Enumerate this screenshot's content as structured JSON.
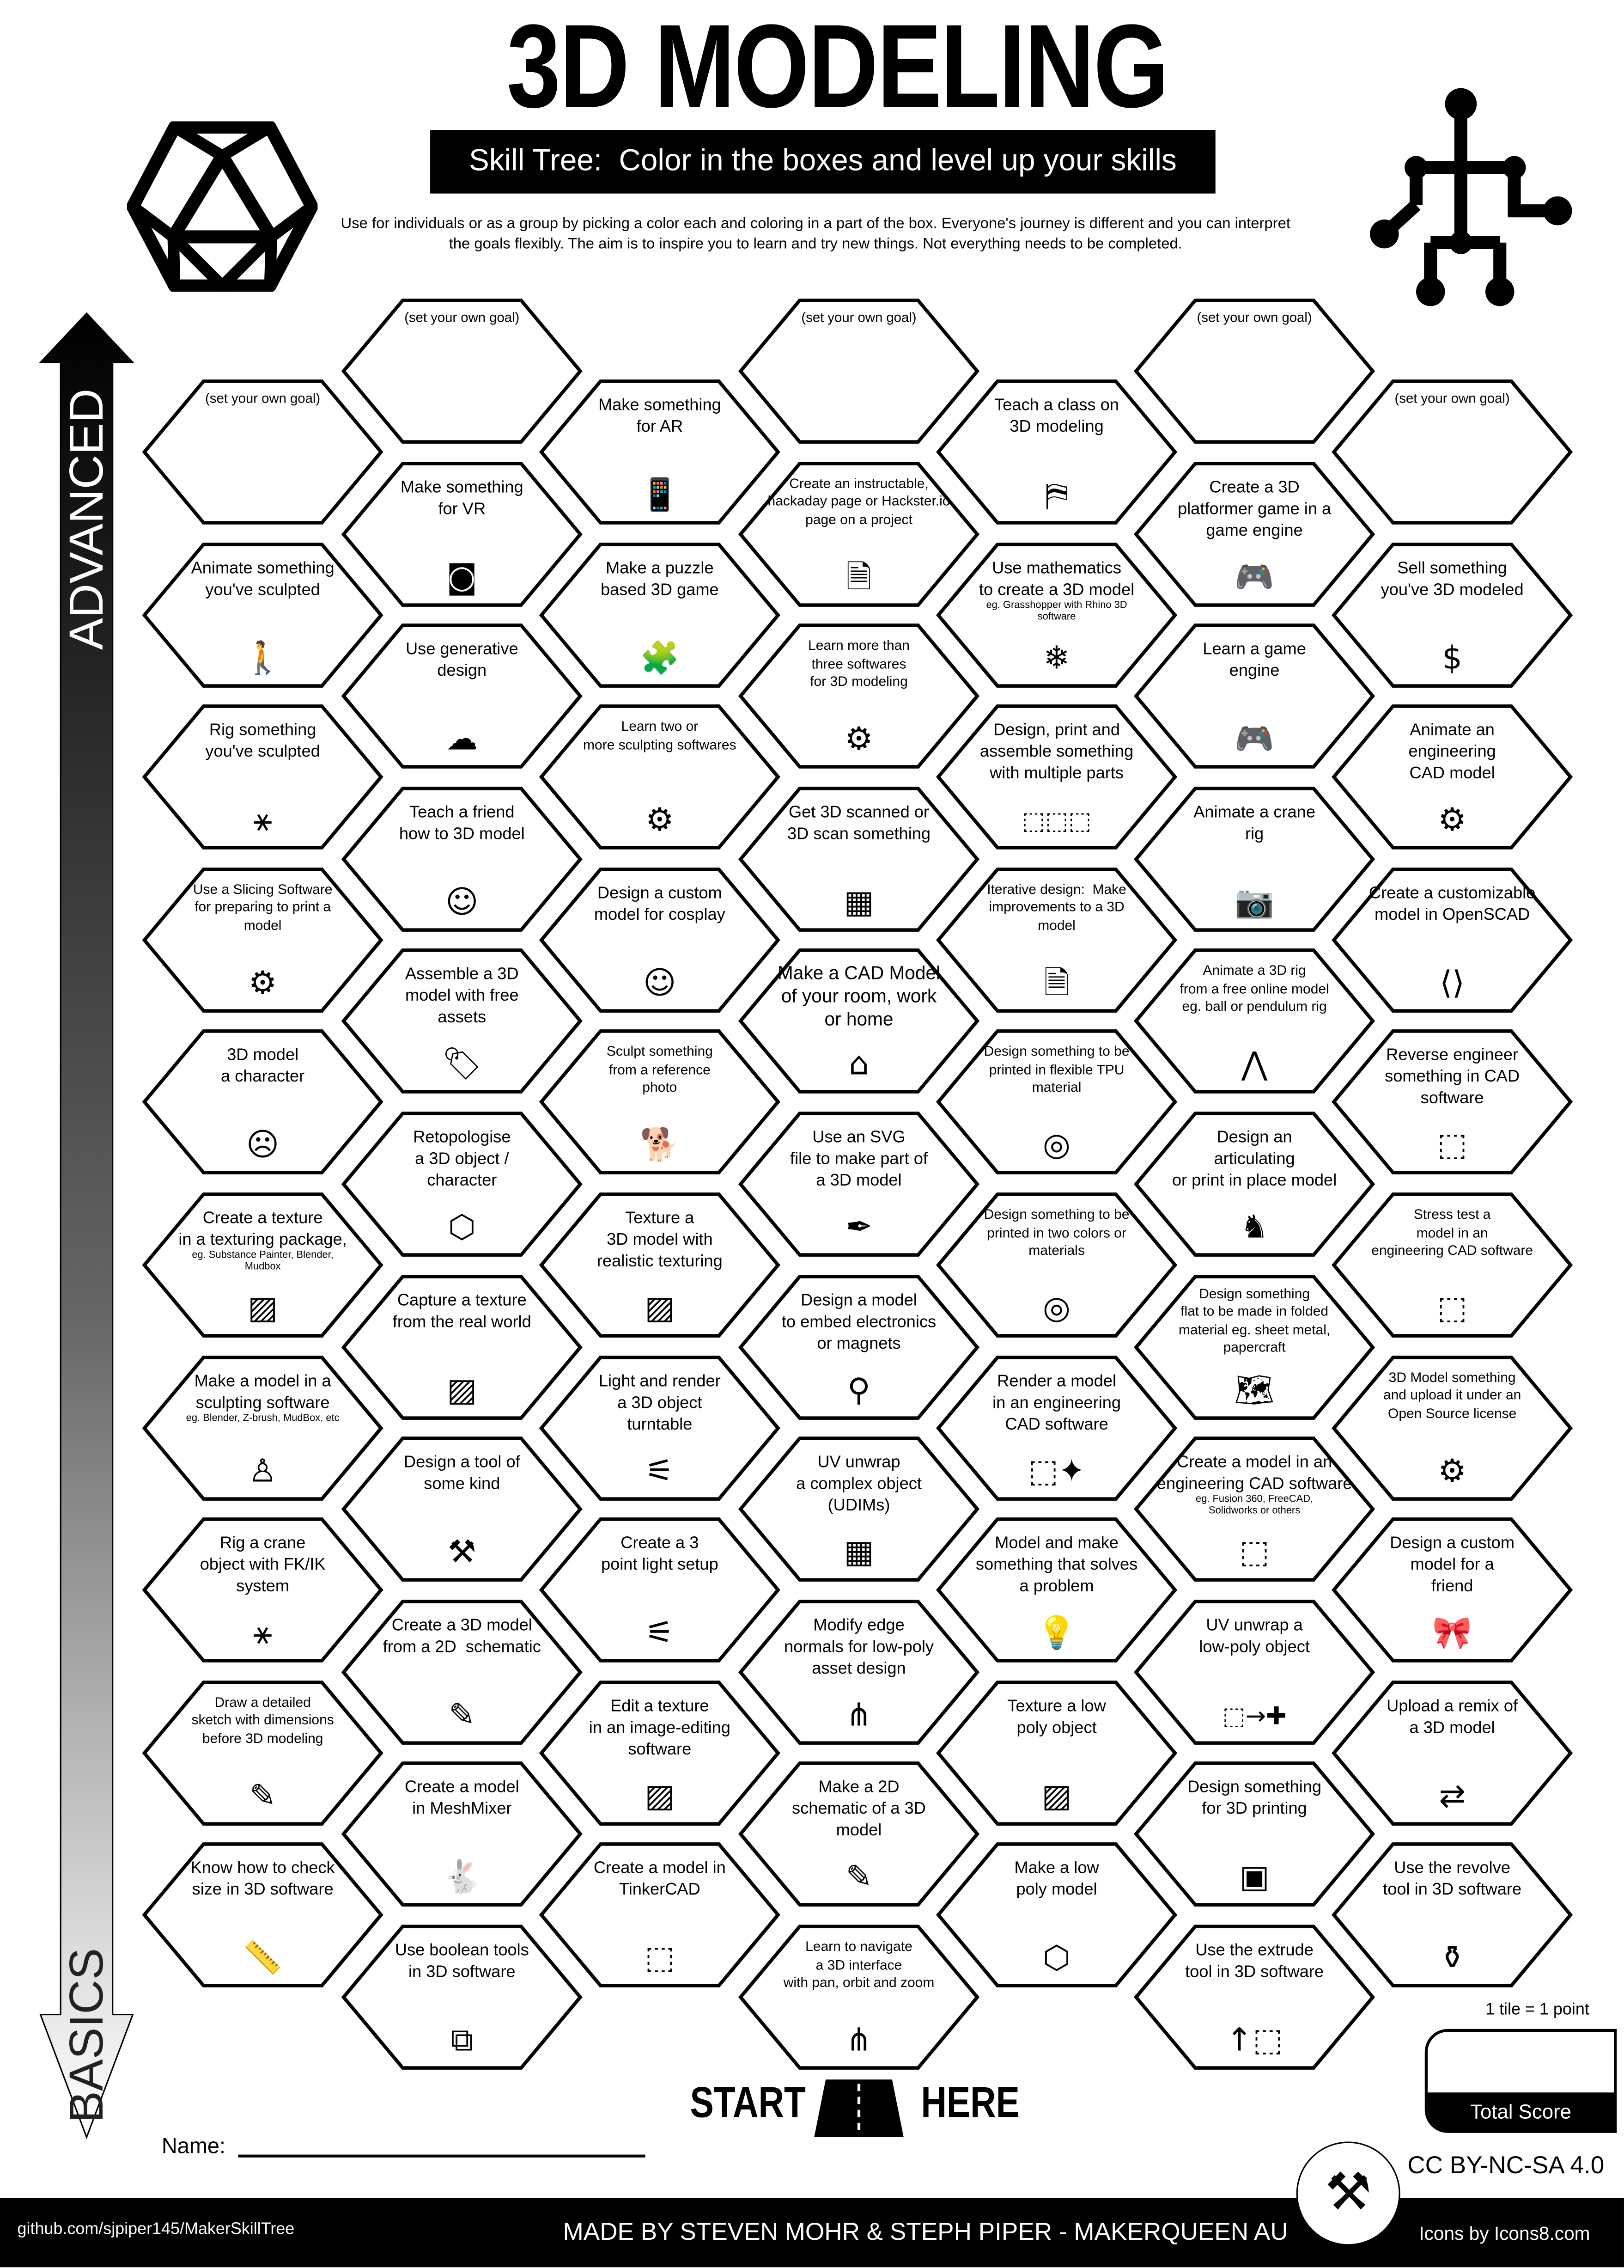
{
  "header": {
    "title": "3D MODELING",
    "subtitle": "Skill Tree:  Color in the boxes and level up your skills",
    "description": "Use for individuals or as a group by picking a color each and coloring in a part of the box.  Everyone's journey is different and you can interpret the goals flexibly.  The aim is to inspire you to learn and try new things. Not everything needs to be completed.",
    "left_logo_icon": "icosahedron-icon",
    "right_logo_icon": "rig-skeleton-icon"
  },
  "axis": {
    "top_label": "ADVANCED",
    "bottom_label": "BASICS"
  },
  "columns": [
    [
      {
        "own": "(set your own goal)"
      },
      {
        "t": "Animate something\nyou've sculpted",
        "i": "walking-person-icon",
        "g": "🚶"
      },
      {
        "t": "Rig something\nyou've sculpted",
        "i": "rig-icon",
        "g": "⚹"
      },
      {
        "t": "Use a Slicing Software\nfor preparing to print a\nmodel",
        "i": "laptop-gear-icon",
        "g": "⚙",
        "small": true
      },
      {
        "t": "3D model\na character",
        "i": "character-face-icon",
        "g": "☹"
      },
      {
        "t": "Create a texture\nin a texturing package,",
        "s": "eg. Substance Painter, Blender,\nMudbox",
        "i": "texture-stripes-icon",
        "g": "▨"
      },
      {
        "t": "Make a model in a\nsculpting software",
        "s": "eg. Blender, Z-brush, MudBox, etc",
        "i": "statue-icon",
        "g": "♙"
      },
      {
        "t": "Rig a crane\nobject with FK/IK\nsystem",
        "i": "rig-icon",
        "g": "⚹"
      },
      {
        "t": "Draw a detailed\nsketch with dimensions\nbefore 3D modeling",
        "i": "sketch-icon",
        "g": "✎",
        "small": true
      },
      {
        "t": "Know how to check\nsize in 3D software",
        "i": "ruler-icon",
        "g": "📏"
      }
    ],
    [
      {
        "own": "(set your own goal)"
      },
      {
        "t": "Make something\nfor VR",
        "i": "vr-headset-icon",
        "g": "◙"
      },
      {
        "t": "Use generative\ndesign",
        "i": "brain-icon",
        "g": "☁"
      },
      {
        "t": "Teach a friend\nhow to 3D model",
        "i": "teaching-icon",
        "g": "☺"
      },
      {
        "t": "Assemble a 3D\nmodel with free\nassets",
        "i": "free-tag-icon",
        "g": "🏷"
      },
      {
        "t": "Retopologise\na 3D object /\ncharacter",
        "i": "icosahedron-icon",
        "g": "⬡"
      },
      {
        "t": "Capture a texture\nfrom the real world",
        "i": "texture-stripes-icon",
        "g": "▨"
      },
      {
        "t": "Design a tool of\nsome kind",
        "i": "tools-icon",
        "g": "⚒"
      },
      {
        "t": "Create a 3D model\nfrom a 2D  schematic",
        "i": "schematic-icon",
        "g": "✎"
      },
      {
        "t": "Create a model\nin MeshMixer",
        "i": "rabbit-icon",
        "g": "🐇"
      },
      {
        "t": "Use boolean tools\nin 3D software",
        "i": "boolean-icon",
        "g": "⧉"
      }
    ],
    [
      {
        "t": "Make something\nfor AR",
        "i": "ar-phone-icon",
        "g": "📱"
      },
      {
        "t": "Make a puzzle\nbased 3D game",
        "i": "puzzle-icon",
        "g": "🧩"
      },
      {
        "t": "Learn two or\nmore sculpting softwares",
        "i": "laptop-gear-icon",
        "g": "⚙",
        "small": true
      },
      {
        "t": "Design a custom\nmodel for cosplay",
        "i": "cosplay-icon",
        "g": "☺"
      },
      {
        "t": "Sculpt something\nfrom a reference\nphoto",
        "i": "dog-icon",
        "g": "🐕",
        "small": true
      },
      {
        "t": "Texture a\n3D model with\nrealistic texturing",
        "i": "texture-stripes-icon",
        "g": "▨"
      },
      {
        "t": "Light and render\na 3D object\nturntable",
        "i": "spotlight-icon",
        "g": "⚟"
      },
      {
        "t": "Create a 3\npoint light setup",
        "i": "spotlight-icon",
        "g": "⚟"
      },
      {
        "t": "Edit a texture\nin an image-editing\nsoftware",
        "i": "texture-stripes-icon",
        "g": "▨"
      },
      {
        "t": "Create a model in\nTinkerCAD",
        "i": "cube-icon",
        "g": "⬚"
      }
    ],
    [
      {
        "own": "(set your own goal)"
      },
      {
        "t": "Create an instructable,\nhackaday page or Hackster.io\npage on a project",
        "i": "document-icon",
        "g": "🗎",
        "small": true
      },
      {
        "t": "Learn more than\nthree softwares\nfor 3D modeling",
        "i": "laptop-gear-icon",
        "g": "⚙",
        "small": true
      },
      {
        "t": "Get 3D scanned or\n3D scan something",
        "i": "scan-person-icon",
        "g": "▦"
      },
      {
        "t": "Make a CAD Model\nof your room, work\nor home",
        "i": "house-icon",
        "g": "⌂",
        "big": true
      },
      {
        "t": "Use an SVG\nfile to make part of\na 3D model",
        "i": "pen-tool-icon",
        "g": "✒"
      },
      {
        "t": "Design a model\nto embed electronics\nor magnets",
        "i": "led-icon",
        "g": "⚲"
      },
      {
        "t": "UV unwrap\na complex object\n(UDIMs)",
        "i": "uv-layout-icon",
        "g": "▦"
      },
      {
        "t": "Modify edge\nnormals for low-poly\nasset design",
        "i": "normals-icon",
        "g": "⋔"
      },
      {
        "t": "Make a 2D\nschematic of a 3D\nmodel",
        "i": "schematic-icon",
        "g": "✎"
      },
      {
        "t": "Learn to navigate\na 3D interface\nwith pan, orbit and zoom",
        "i": "axes-icon",
        "g": "⋔",
        "small": true
      }
    ],
    [
      {
        "t": "Teach a class on\n3D modeling",
        "i": "teacher-board-icon",
        "g": "⛿"
      },
      {
        "t": "Use mathematics\nto create a 3D model",
        "s": "eg. Grasshopper with Rhino 3D\nsoftware",
        "i": "snowflake-icon",
        "g": "❄"
      },
      {
        "t": "Design, print and\nassemble something\nwith multiple parts",
        "i": "multiple-cubes-icon",
        "g": "⬚⬚⬚"
      },
      {
        "t": "Iterative design:  Make\nimprovements to a 3D\nmodel",
        "i": "v2-file-icon",
        "g": "🗎",
        "small": true
      },
      {
        "t": "Design something to be\nprinted in flexible TPU\nmaterial",
        "i": "filament-spool-icon",
        "g": "◎",
        "small": true
      },
      {
        "t": "Design something to be\nprinted in two colors or\nmaterials",
        "i": "filament-spool-icon",
        "g": "◎",
        "small": true
      },
      {
        "t": "Render a model\nin an engineering\nCAD software",
        "i": "sparkle-cube-icon",
        "g": "⬚✦"
      },
      {
        "t": "Model and make\nsomething that solves\na problem",
        "i": "lightbulb-icon",
        "g": "💡"
      },
      {
        "t": "Texture a low\npoly object",
        "i": "texture-stripes-icon",
        "g": "▨"
      },
      {
        "t": "Make a low\npoly model",
        "i": "icosahedron-icon",
        "g": "⬡"
      }
    ],
    [
      {
        "own": "(set your own goal)"
      },
      {
        "t": "Create a 3D\nplatformer game in a\ngame engine",
        "i": "gamepad-icon",
        "g": "🎮"
      },
      {
        "t": "Learn a game\nengine",
        "i": "gamepad-icon",
        "g": "🎮"
      },
      {
        "t": "Animate a crane\nrig",
        "i": "camera-icon",
        "g": "📷"
      },
      {
        "t": "Animate a 3D rig\nfrom a free online model\neg. ball or pendulum rig",
        "i": "pendulum-icon",
        "g": "⋀",
        "small": true
      },
      {
        "t": "Design an\narticulating\nor print in place model",
        "i": "dragon-icon",
        "g": "♞"
      },
      {
        "t": "Design something\nflat to be made in folded\nmaterial eg. sheet metal,\npapercraft",
        "i": "folded-map-icon",
        "g": "🗺",
        "small": true
      },
      {
        "t": "Create a model in an\nengineering CAD software",
        "s": "eg. Fusion 360, FreeCAD,\nSolidworks or others",
        "i": "cube-icon",
        "g": "⬚"
      },
      {
        "t": "UV unwrap a\nlow-poly object",
        "i": "cube-unfold-icon",
        "g": "⬚→✚"
      },
      {
        "t": "Design something\nfor 3D printing",
        "i": "3d-printer-icon",
        "g": "▣"
      },
      {
        "t": "Use the extrude\ntool in 3D software",
        "i": "extrude-icon",
        "g": "↑⬚"
      }
    ],
    [
      {
        "own": "(set your own goal)"
      },
      {
        "t": "Sell something\nyou've 3D modeled",
        "i": "money-bag-icon",
        "g": "$"
      },
      {
        "t": "Animate an\nengineering\nCAD model",
        "i": "gears-icon",
        "g": "⚙"
      },
      {
        "t": "Create a customizable\nmodel in OpenSCAD",
        "i": "code-icon",
        "g": "⟨⟩"
      },
      {
        "t": "Reverse engineer\nsomething in CAD\nsoftware",
        "i": "cube-icon",
        "g": "⬚"
      },
      {
        "t": "Stress test a\nmodel in an\nengineering CAD software",
        "i": "falling-cube-icon",
        "g": "⬚",
        "small": true
      },
      {
        "t": "3D Model something\nand upload it under an\nOpen Source license",
        "i": "open-source-icon",
        "g": "⚙",
        "small": true
      },
      {
        "t": "Design a custom\nmodel for a\nfriend",
        "i": "gift-bow-icon",
        "g": "🎀",
        "gift": true
      },
      {
        "t": "Upload a remix of\na 3D model",
        "i": "remix-arrows-icon",
        "g": "⇄"
      },
      {
        "t": "Use the revolve\ntool in 3D software",
        "i": "vase-icon",
        "g": "⚱"
      }
    ]
  ],
  "bottom": {
    "start": "START",
    "here": "HERE",
    "road_icon": "road-icon",
    "name_label": "Name:",
    "tile_note": "1 tile = 1 point",
    "score_label": "Total Score",
    "license": "CC BY-NC-SA 4.0",
    "badge_icon": "maker-tools-badge-icon"
  },
  "footer": {
    "github": "github.com/sjpiper145/MakerSkillTree",
    "made_by": "MADE BY STEVEN MOHR & STEPH PIPER  -  MAKERQUEEN AU",
    "icons_credit": "Icons by Icons8.com"
  },
  "colors": {
    "ink": "#000000",
    "paper": "#ffffff"
  }
}
